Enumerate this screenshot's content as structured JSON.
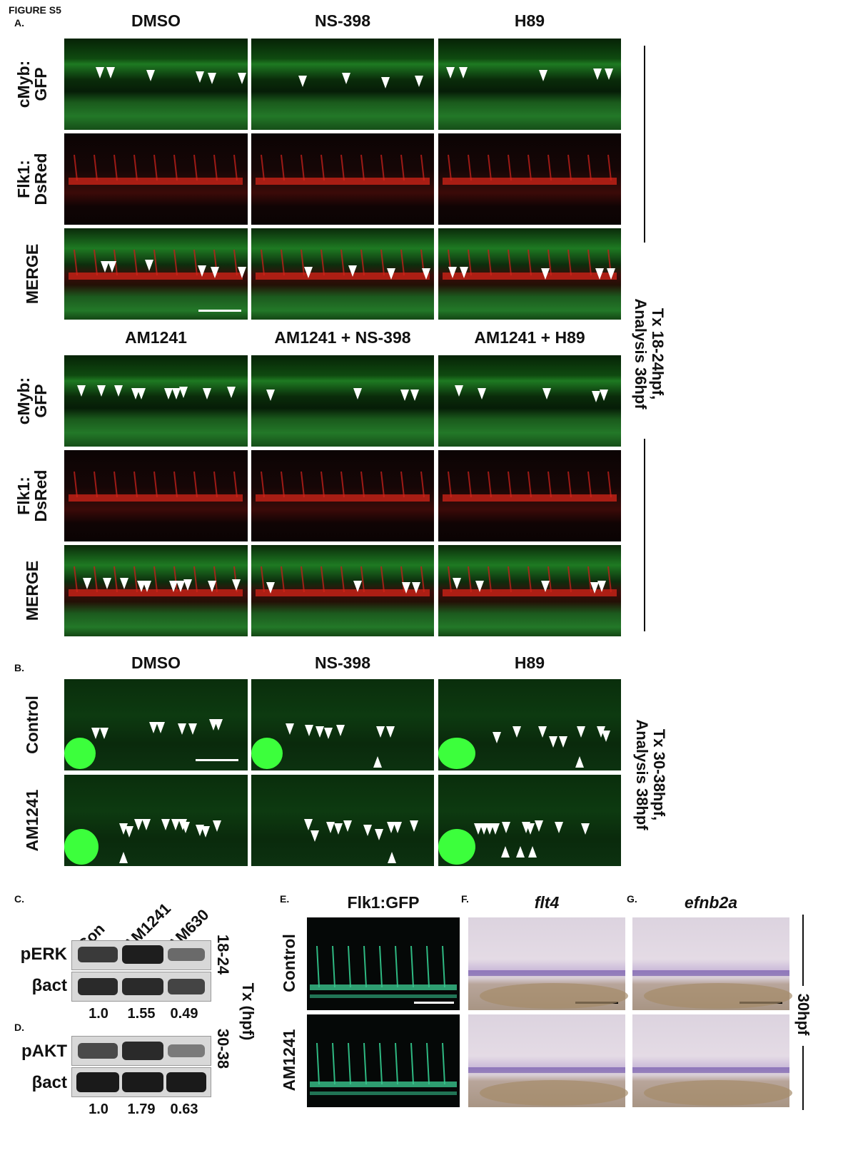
{
  "figure_title": "FIGURE S5",
  "panel_letters": {
    "a": "A.",
    "b": "B.",
    "c": "C.",
    "d": "D.",
    "e": "E.",
    "f": "F.",
    "g": "G."
  },
  "section_a": {
    "top_columns": [
      "DMSO",
      "NS-398",
      "H89"
    ],
    "bottom_columns": [
      "AM1241",
      "AM1241 + NS-398",
      "AM1241 + H89"
    ],
    "rows": [
      "cMyb:\nGFP",
      "Flk1:\nDsRed",
      "MERGE"
    ],
    "row_line1": [
      "cMyb:",
      "Flk1:",
      "MERGE"
    ],
    "row_line2": [
      "GFP",
      "DsRed",
      ""
    ],
    "side_label_line1": "Tx 18-24hpf,",
    "side_label_line2": "Analysis 36hpf"
  },
  "section_b": {
    "columns": [
      "DMSO",
      "NS-398",
      "H89"
    ],
    "rows": [
      "Control",
      "AM1241"
    ],
    "side_label_line1": "Tx 30-38hpf,",
    "side_label_line2": "Analysis 38hpf"
  },
  "section_c": {
    "lanes": [
      "Con",
      "AM1241",
      "AM630"
    ],
    "blots": [
      "pERK",
      "βact"
    ],
    "time": "18-24",
    "values": [
      "1.0",
      "1.55",
      "0.49"
    ]
  },
  "section_d": {
    "blots": [
      "pAKT",
      "βact"
    ],
    "time": "30-38",
    "values": [
      "1.0",
      "1.79",
      "0.63"
    ]
  },
  "tx_label": "Tx (hpf)",
  "section_e": {
    "title": "Flk1:GFP",
    "rows": [
      "Control",
      "AM1241"
    ]
  },
  "section_f": {
    "title": "flt4"
  },
  "section_g": {
    "title": "efnb2a"
  },
  "stage_label": "30hpf"
}
